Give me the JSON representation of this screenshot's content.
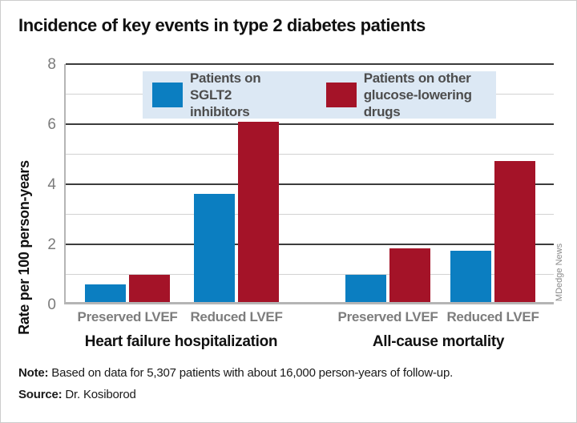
{
  "title": "Incidence of key events in type 2 diabetes patients",
  "credit": "MDedge News",
  "note": {
    "label": "Note:",
    "text": " Based on data for 5,307 patients with about 16,000 person-years of follow-up."
  },
  "source": {
    "label": "Source:",
    "text": " Dr. Kosiborod"
  },
  "legend": {
    "items": [
      {
        "line1": "Patients on",
        "line2": "SGLT2 inhibitors",
        "color": "#0b7ec1"
      },
      {
        "line1": "Patients on other",
        "line2": "glucose-lowering drugs",
        "color": "#a41328"
      }
    ]
  },
  "chart_data": {
    "type": "bar",
    "title": "Incidence of key events in type 2 diabetes patients",
    "xlabel": "",
    "ylabel": "Rate per 100 person-years",
    "ylim": [
      0,
      8
    ],
    "y_major_ticks": [
      0,
      2,
      4,
      6,
      8
    ],
    "y_minor_gridlines": [
      1,
      3,
      5,
      7
    ],
    "grid": true,
    "legend_position": "top-inside",
    "categories": [
      "Preserved LVEF",
      "Reduced LVEF",
      "Preserved LVEF",
      "Reduced LVEF"
    ],
    "panels": [
      {
        "label": "Heart failure hospitalization",
        "category_indexes": [
          0,
          1
        ]
      },
      {
        "label": "All-cause mortality",
        "category_indexes": [
          2,
          3
        ]
      }
    ],
    "series": [
      {
        "name": "Patients on SGLT2 inhibitors",
        "color": "#0b7ec1",
        "values": [
          0.6,
          3.6,
          0.9,
          1.7
        ]
      },
      {
        "name": "Patients on other glucose-lowering drugs",
        "color": "#a41328",
        "values": [
          0.9,
          6.0,
          1.8,
          4.7
        ]
      }
    ]
  }
}
